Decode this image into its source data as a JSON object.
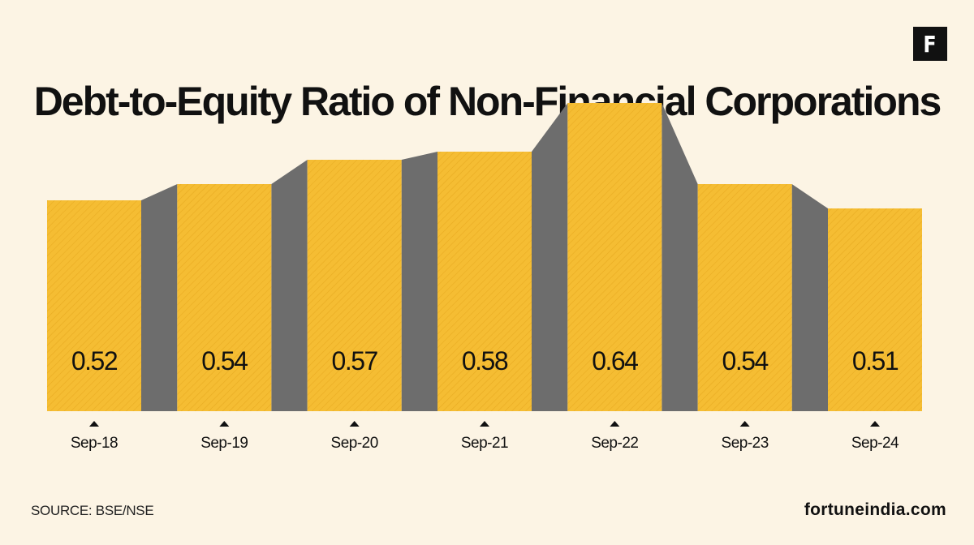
{
  "logo": {
    "letter": "F"
  },
  "title": "Debt-to-Equity Ratio of Non-Financial Corporations",
  "source": "SOURCE: BSE/NSE",
  "site": "fortuneindia.com",
  "colors": {
    "background": "#fcf4e4",
    "bar": "#f5bd33",
    "connector": "#6d6d6d",
    "text": "#111111"
  },
  "chart_data": {
    "type": "bar",
    "categories": [
      "Sep-18",
      "Sep-19",
      "Sep-20",
      "Sep-21",
      "Sep-22",
      "Sep-23",
      "Sep-24"
    ],
    "values": [
      0.52,
      0.54,
      0.57,
      0.58,
      0.64,
      0.54,
      0.51
    ],
    "value_labels": [
      "0.52",
      "0.54",
      "0.57",
      "0.58",
      "0.64",
      "0.54",
      "0.51"
    ],
    "title": "Debt-to-Equity Ratio of Non-Financial Corporations",
    "xlabel": "",
    "ylabel": "",
    "grid": false,
    "legend": "none"
  }
}
